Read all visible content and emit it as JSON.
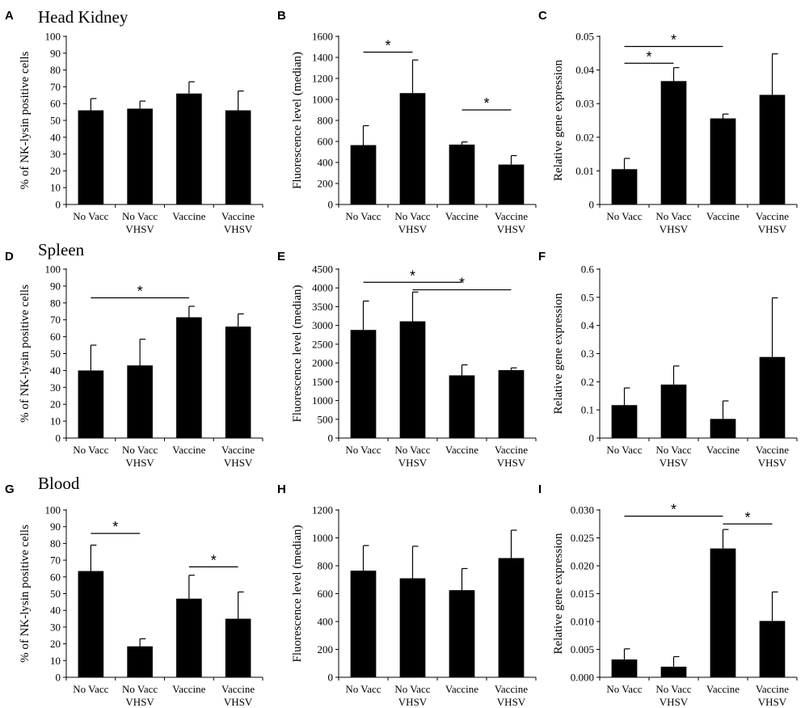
{
  "figure": {
    "row_titles": [
      "Head Kidney",
      "Spleen",
      "Blood"
    ],
    "panel_letters": [
      "A",
      "B",
      "C",
      "D",
      "E",
      "F",
      "G",
      "H",
      "I"
    ]
  },
  "chart_data": [
    {
      "type": "bar",
      "letter": "A",
      "ylabel": "% of NK-lysin positive cells",
      "ylim": [
        0,
        100
      ],
      "ticks": [
        "0",
        "10",
        "20",
        "30",
        "40",
        "50",
        "60",
        "70",
        "80",
        "90",
        "100"
      ],
      "categories": [
        [
          "No Vacc"
        ],
        [
          "No Vacc",
          "VHSV"
        ],
        [
          "Vaccine"
        ],
        [
          "Vaccine",
          "VHSV"
        ]
      ],
      "values": [
        56,
        57,
        66,
        56
      ],
      "errors": [
        7,
        4.5,
        7,
        11.5
      ],
      "significance": []
    },
    {
      "type": "bar",
      "letter": "B",
      "ylabel": "Fluorescence level (median)",
      "ylim": [
        0,
        1600
      ],
      "ticks": [
        "0",
        "200",
        "400",
        "600",
        "800",
        "1000",
        "1200",
        "1400",
        "1600"
      ],
      "categories": [
        [
          "No Vacc"
        ],
        [
          "No Vacc",
          "VHSV"
        ],
        [
          "Vaccine"
        ],
        [
          "Vaccine",
          "VHSV"
        ]
      ],
      "values": [
        565,
        1060,
        570,
        380
      ],
      "errors": [
        185,
        315,
        25,
        85
      ],
      "significance": [
        {
          "from": 0,
          "to": 1,
          "y": 1450,
          "label": "*"
        },
        {
          "from": 2,
          "to": 3,
          "y": 900,
          "label": "*"
        }
      ]
    },
    {
      "type": "bar",
      "letter": "C",
      "ylabel": "Relative gene expression",
      "ylim": [
        0,
        0.05
      ],
      "ticks": [
        "0",
        "0.01",
        "0.02",
        "0.03",
        "0.04",
        "0.05"
      ],
      "categories": [
        [
          "No Vacc"
        ],
        [
          "No Vacc",
          "VHSV"
        ],
        [
          "Vaccine"
        ],
        [
          "Vaccine",
          "VHSV"
        ]
      ],
      "values": [
        0.0105,
        0.0367,
        0.0256,
        0.0326
      ],
      "errors": [
        0.0032,
        0.004,
        0.0013,
        0.0122
      ],
      "significance": [
        {
          "from": 0,
          "to": 2,
          "y": 0.047,
          "label": "*"
        },
        {
          "from": 0,
          "to": 1,
          "y": 0.042,
          "label": "*"
        }
      ]
    },
    {
      "type": "bar",
      "letter": "D",
      "ylabel": "% of NK-lysin positive cells",
      "ylim": [
        0,
        100
      ],
      "ticks": [
        "0",
        "10",
        "20",
        "30",
        "40",
        "50",
        "60",
        "70",
        "80",
        "90",
        "100"
      ],
      "categories": [
        [
          "No Vacc"
        ],
        [
          "No Vacc",
          "VHSV"
        ],
        [
          "Vaccine"
        ],
        [
          "Vaccine",
          "VHSV"
        ]
      ],
      "values": [
        40,
        43,
        71.5,
        66
      ],
      "errors": [
        15,
        15.5,
        6.5,
        7.5
      ],
      "significance": [
        {
          "from": 0,
          "to": 2,
          "y": 83,
          "label": "*"
        }
      ]
    },
    {
      "type": "bar",
      "letter": "E",
      "ylabel": "Fluorescence level (median)",
      "ylim": [
        0,
        4500
      ],
      "ticks": [
        "0",
        "500",
        "1000",
        "1500",
        "2000",
        "2500",
        "3000",
        "3500",
        "4000",
        "4500"
      ],
      "categories": [
        [
          "No Vacc"
        ],
        [
          "No Vacc",
          "VHSV"
        ],
        [
          "Vaccine"
        ],
        [
          "Vaccine",
          "VHSV"
        ]
      ],
      "values": [
        2880,
        3110,
        1670,
        1810
      ],
      "errors": [
        770,
        780,
        280,
        60
      ],
      "significance": [
        {
          "from": 0,
          "to": 2,
          "y": 4150,
          "label": "*"
        },
        {
          "from": 1,
          "to": 3,
          "y": 3950,
          "label": "*"
        }
      ]
    },
    {
      "type": "bar",
      "letter": "F",
      "ylabel": "Relative gene expression",
      "ylim": [
        0,
        0.6
      ],
      "ticks": [
        "0",
        "0.1",
        "0.2",
        "0.3",
        "0.4",
        "0.5",
        "0.6"
      ],
      "categories": [
        [
          "No Vacc"
        ],
        [
          "No Vacc",
          "VHSV"
        ],
        [
          "Vaccine"
        ],
        [
          "Vaccine",
          "VHSV"
        ]
      ],
      "values": [
        0.117,
        0.19,
        0.068,
        0.288
      ],
      "errors": [
        0.061,
        0.066,
        0.064,
        0.21
      ],
      "significance": []
    },
    {
      "type": "bar",
      "letter": "G",
      "ylabel": "% of NK-lysin positive cells",
      "ylim": [
        0,
        100
      ],
      "ticks": [
        "0",
        "10",
        "20",
        "30",
        "40",
        "50",
        "60",
        "70",
        "80",
        "90",
        "100"
      ],
      "categories": [
        [
          "No Vacc"
        ],
        [
          "No Vacc",
          "VHSV"
        ],
        [
          "Vaccine"
        ],
        [
          "Vaccine",
          "VHSV"
        ]
      ],
      "values": [
        63.5,
        18.5,
        47,
        35
      ],
      "errors": [
        15.5,
        4.5,
        14,
        16
      ],
      "significance": [
        {
          "from": 0,
          "to": 1,
          "y": 86,
          "label": "*"
        },
        {
          "from": 2,
          "to": 3,
          "y": 66,
          "label": "*"
        }
      ]
    },
    {
      "type": "bar",
      "letter": "H",
      "ylabel": "Fluorescence level (median)",
      "ylim": [
        0,
        1200
      ],
      "ticks": [
        "0",
        "200",
        "400",
        "600",
        "800",
        "1000",
        "1200"
      ],
      "categories": [
        [
          "No Vacc"
        ],
        [
          "No Vacc",
          "VHSV"
        ],
        [
          "Vaccine"
        ],
        [
          "Vaccine",
          "VHSV"
        ]
      ],
      "values": [
        765,
        710,
        625,
        855
      ],
      "errors": [
        180,
        230,
        155,
        200
      ],
      "significance": []
    },
    {
      "type": "bar",
      "letter": "I",
      "ylabel": "Relative gene expression",
      "ylim": [
        0,
        0.03
      ],
      "ticks": [
        "0.000",
        "0.005",
        "0.010",
        "0.015",
        "0.020",
        "0.025",
        "0.030"
      ],
      "categories": [
        [
          "No Vacc"
        ],
        [
          "No Vacc",
          "VHSV"
        ],
        [
          "Vaccine"
        ],
        [
          "Vaccine",
          "VHSV"
        ]
      ],
      "values": [
        0.0032,
        0.0019,
        0.0231,
        0.0101
      ],
      "errors": [
        0.0019,
        0.0018,
        0.0034,
        0.0052
      ],
      "significance": [
        {
          "from": 0,
          "to": 2,
          "y": 0.0289,
          "label": "*"
        },
        {
          "from": 2,
          "to": 3,
          "y": 0.0275,
          "label": "*"
        }
      ]
    }
  ]
}
